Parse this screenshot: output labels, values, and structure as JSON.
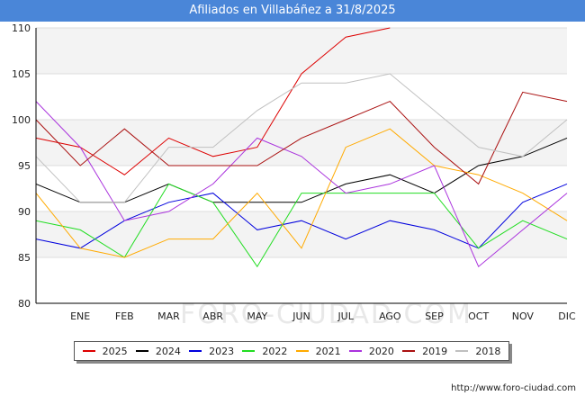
{
  "header": {
    "title": "Afiliados en Villabáñez a 31/8/2025"
  },
  "source": "http://www.foro-ciudad.com",
  "watermark": "FORO-CIUDAD.COM",
  "chart_data": {
    "type": "line",
    "title": "Afiliados en Villabáñez a 31/8/2025",
    "xlabel": "",
    "ylabel": "",
    "categories": [
      "",
      "ENE",
      "FEB",
      "MAR",
      "ABR",
      "MAY",
      "JUN",
      "JUL",
      "AGO",
      "SEP",
      "OCT",
      "NOV",
      "DIC"
    ],
    "ylim": [
      80,
      110
    ],
    "yticks": [
      80,
      85,
      90,
      95,
      100,
      105,
      110
    ],
    "grid": true,
    "legend_position": "bottom",
    "series": [
      {
        "name": "2025",
        "color": "#dd0000",
        "values": [
          98,
          97,
          94,
          98,
          96,
          97,
          105,
          109,
          110,
          null,
          null,
          null,
          null
        ]
      },
      {
        "name": "2024",
        "color": "#000000",
        "values": [
          93,
          91,
          91,
          93,
          91,
          91,
          91,
          93,
          94,
          92,
          95,
          96,
          98
        ]
      },
      {
        "name": "2023",
        "color": "#0000dd",
        "values": [
          87,
          86,
          89,
          91,
          92,
          88,
          89,
          87,
          89,
          88,
          86,
          91,
          93
        ]
      },
      {
        "name": "2022",
        "color": "#22dd22",
        "values": [
          89,
          88,
          85,
          93,
          91,
          84,
          92,
          92,
          92,
          92,
          86,
          89,
          87
        ]
      },
      {
        "name": "2021",
        "color": "#ffaa00",
        "values": [
          92,
          86,
          85,
          87,
          87,
          92,
          86,
          97,
          99,
          95,
          94,
          92,
          89
        ]
      },
      {
        "name": "2020",
        "color": "#aa33dd",
        "values": [
          102,
          97,
          89,
          90,
          93,
          98,
          96,
          92,
          93,
          95,
          84,
          88,
          92
        ]
      },
      {
        "name": "2019",
        "color": "#aa1111",
        "values": [
          100,
          95,
          99,
          95,
          95,
          95,
          98,
          100,
          102,
          97,
          93,
          103,
          102
        ]
      },
      {
        "name": "2018",
        "color": "#c0c0c0",
        "values": [
          96,
          91,
          91,
          97,
          97,
          101,
          104,
          104,
          105,
          101,
          97,
          96,
          100
        ]
      }
    ]
  }
}
